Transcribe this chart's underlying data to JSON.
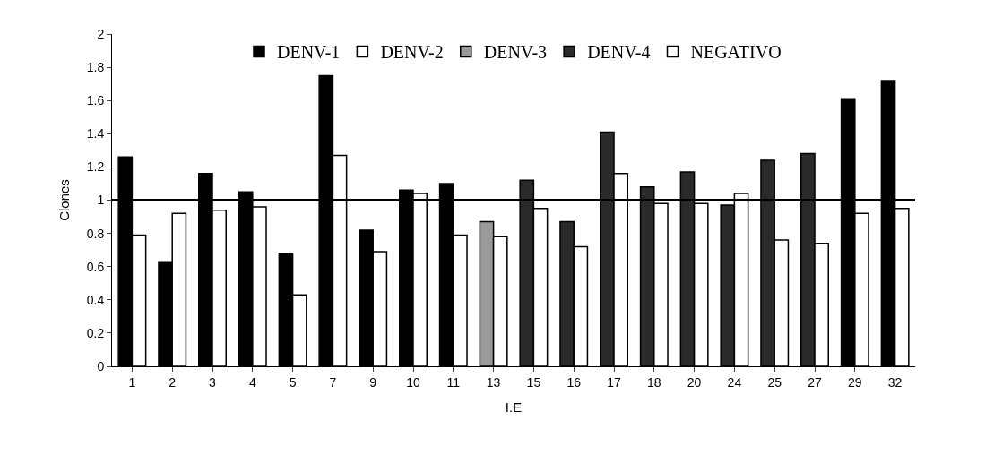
{
  "chart_data": {
    "type": "bar",
    "xlabel": "I.E",
    "ylabel": "Clones",
    "categories": [
      "1",
      "2",
      "3",
      "4",
      "5",
      "7",
      "9",
      "10",
      "11",
      "13",
      "15",
      "16",
      "17",
      "18",
      "20",
      "24",
      "25",
      "27",
      "29",
      "32"
    ],
    "series": [
      {
        "name": "DENV-1",
        "color": "#000000",
        "values": [
          1.26,
          0.63,
          1.16,
          1.05,
          0.68,
          1.75,
          0.82,
          1.06,
          1.1,
          null,
          null,
          null,
          null,
          null,
          null,
          null,
          null,
          null,
          1.61,
          1.72
        ]
      },
      {
        "name": "DENV-2",
        "color": "#ffffff",
        "values": [
          null,
          null,
          null,
          null,
          null,
          null,
          null,
          null,
          null,
          null,
          null,
          null,
          null,
          null,
          null,
          null,
          null,
          null,
          null,
          null
        ]
      },
      {
        "name": "DENV-3",
        "color": "#9a9a9a",
        "values": [
          null,
          null,
          null,
          null,
          null,
          null,
          null,
          null,
          null,
          0.87,
          null,
          null,
          null,
          null,
          null,
          null,
          null,
          null,
          null,
          null
        ]
      },
      {
        "name": "DENV-4",
        "color": "#2a2a2a",
        "values": [
          null,
          null,
          null,
          null,
          null,
          null,
          null,
          null,
          null,
          null,
          1.12,
          0.87,
          1.41,
          1.08,
          1.17,
          0.97,
          1.24,
          1.28,
          null,
          null
        ]
      },
      {
        "name": "NEGATIVO",
        "color": "#ffffff",
        "values": [
          0.79,
          0.92,
          0.94,
          0.96,
          0.43,
          1.27,
          0.69,
          1.04,
          0.79,
          0.78,
          0.95,
          0.72,
          1.16,
          0.98,
          0.98,
          1.04,
          0.76,
          0.74,
          0.92,
          0.95
        ]
      }
    ],
    "ylim": [
      0,
      2
    ],
    "yticks": [
      0,
      0.2,
      0.4,
      0.6,
      0.8,
      1,
      1.2,
      1.4,
      1.6,
      1.8,
      2
    ],
    "ref_lines": [
      {
        "axis": "y",
        "value": 1,
        "color": "#000000"
      }
    ],
    "legend": "top"
  }
}
